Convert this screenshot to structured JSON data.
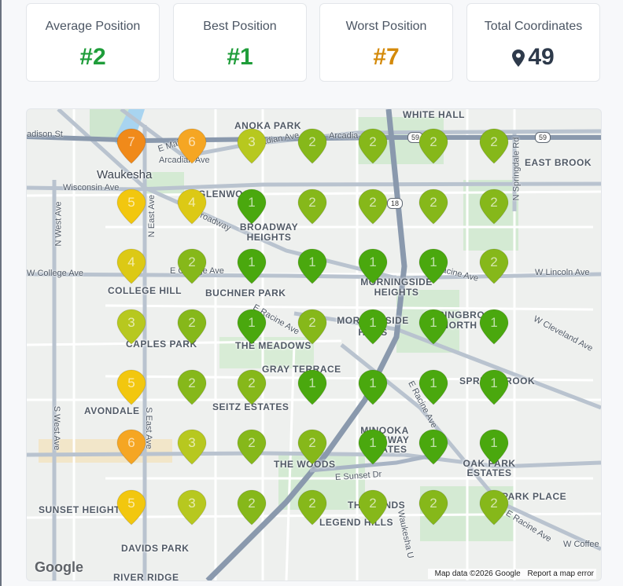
{
  "stats": [
    {
      "label": "Average Position",
      "value": "#2",
      "tone": "green"
    },
    {
      "label": "Best Position",
      "value": "#1",
      "tone": "green"
    },
    {
      "label": "Worst Position",
      "value": "#7",
      "tone": "orange"
    },
    {
      "label": "Total Coordinates",
      "value": "49",
      "tone": "slate",
      "icon": "map-pin-icon"
    }
  ],
  "colors": {
    "rank1": "#4aa80e",
    "rank2": "#86b81a",
    "rank3": "#b7c81f",
    "rank4": "#dcc915",
    "rank5": "#f2c70f",
    "rank6": "#f5a623",
    "rank7": "#f08a1a"
  },
  "grid_ranks": [
    [
      7,
      6,
      3,
      2,
      2,
      2,
      2
    ],
    [
      5,
      4,
      1,
      2,
      2,
      2,
      2
    ],
    [
      4,
      2,
      1,
      1,
      1,
      1,
      2
    ],
    [
      3,
      2,
      1,
      2,
      1,
      1,
      1
    ],
    [
      5,
      2,
      2,
      1,
      1,
      1,
      1
    ],
    [
      6,
      3,
      2,
      2,
      1,
      1,
      1
    ],
    [
      5,
      3,
      2,
      2,
      2,
      2,
      2
    ]
  ],
  "map": {
    "labels": {
      "white_hall": "WHITE HALL",
      "anoka_park": "ANOKA PARK",
      "east_brook": "EAST BROOK",
      "waukesha": "Waukesha",
      "glenwood": "GLENWOOD",
      "broadway_heights": "BROADWAY HEIGHTS",
      "morningside_heights": "MORNINGSIDE HEIGHTS",
      "college_hill": "COLLEGE HILL",
      "buchner_park": "BUCHNER PARK",
      "springbrook_north": "SPRINGBROOK NORTH",
      "caples_park": "CAPLES PARK",
      "the_meadows": "THE MEADOWS",
      "morningside_hills": "MORNINGSIDE HILLS",
      "gray_terrace": "GRAY TERRACE",
      "springbrook": "SPRINGBROOK",
      "avondale": "AVONDALE",
      "seitz_estates": "SEITZ ESTATES",
      "minooka_parkway": "MINOOKA PARKWAY ESTATES",
      "oak_park_estates": "OAK PARK ESTATES",
      "the_woods": "THE WOODS",
      "park_place": "PARK PLACE",
      "sunset_heights": "SUNSET HEIGHTS",
      "the_lands": "THE LANDS",
      "legend_hills": "LEGEND HILLS",
      "davids_park": "DAVIDS PARK",
      "river_ridge": "RIVER RIDGE"
    },
    "streets": {
      "madison": "adison St",
      "main": "E Main St",
      "arcadian": "Arcadian Ave",
      "arcadian2": "Arcadian Ave",
      "arcadia": "Arcadia",
      "wisconsin": "Wisconsin Ave",
      "west_ave": "N West Ave",
      "east_ave": "N East Ave",
      "broadway": "Broadway",
      "college": "W College Ave",
      "college2": "E College Ave",
      "racine": "E Racine Ave",
      "racine2": "E Racine Ave",
      "racine3": "E Racine Ave",
      "lincoln": "W Lincoln Ave",
      "cleveland": "W Cleveland Ave",
      "springdale": "N Springdale Rd",
      "s_west": "S West Ave",
      "s_east": "S East Ave",
      "sunset": "E Sunset Dr",
      "waukesha_u": "Waukesha U",
      "coffee": "W Coffee"
    },
    "highways": {
      "h59a": "59",
      "h59b": "59",
      "h18": "18"
    },
    "google_logo": "Google",
    "map_data": "Map data ©2026 Google",
    "report": "Report a map error"
  }
}
